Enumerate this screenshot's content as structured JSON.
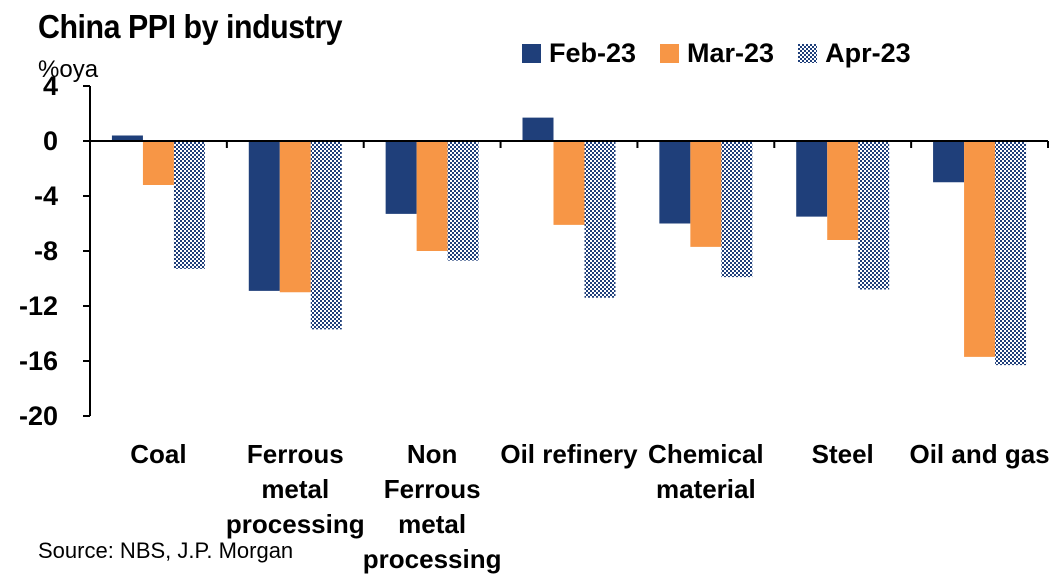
{
  "title": "China PPI by industry",
  "y_unit": "%oya",
  "source": "Source: NBS, J.P. Morgan",
  "colors": {
    "feb": "#1f3f7a",
    "mar": "#f79646",
    "apr_pattern": "#1f3f7a"
  },
  "chart_data": {
    "type": "bar",
    "title": "China PPI by industry",
    "ylabel": "%oya",
    "xlabel": "",
    "ylim": [
      -20,
      4
    ],
    "yticks": [
      4,
      0,
      -4,
      -8,
      -12,
      -16,
      -20
    ],
    "legend_position": "top",
    "categories": [
      [
        "Coal"
      ],
      [
        "Ferrous",
        "metal",
        "processing"
      ],
      [
        "Non",
        "Ferrous",
        "metal",
        "processing"
      ],
      [
        "Oil refinery"
      ],
      [
        "Chemical",
        "material"
      ],
      [
        "Steel"
      ],
      [
        "Oil and gas"
      ]
    ],
    "series": [
      {
        "name": "Feb-23",
        "values": [
          0.4,
          -10.9,
          -5.3,
          1.7,
          -6.0,
          -5.5,
          -3.0
        ]
      },
      {
        "name": "Mar-23",
        "values": [
          -3.2,
          -11.0,
          -8.0,
          -6.1,
          -7.7,
          -7.2,
          -15.7
        ]
      },
      {
        "name": "Apr-23",
        "values": [
          -9.3,
          -13.7,
          -8.7,
          -11.4,
          -9.9,
          -10.8,
          -16.3
        ]
      }
    ]
  }
}
